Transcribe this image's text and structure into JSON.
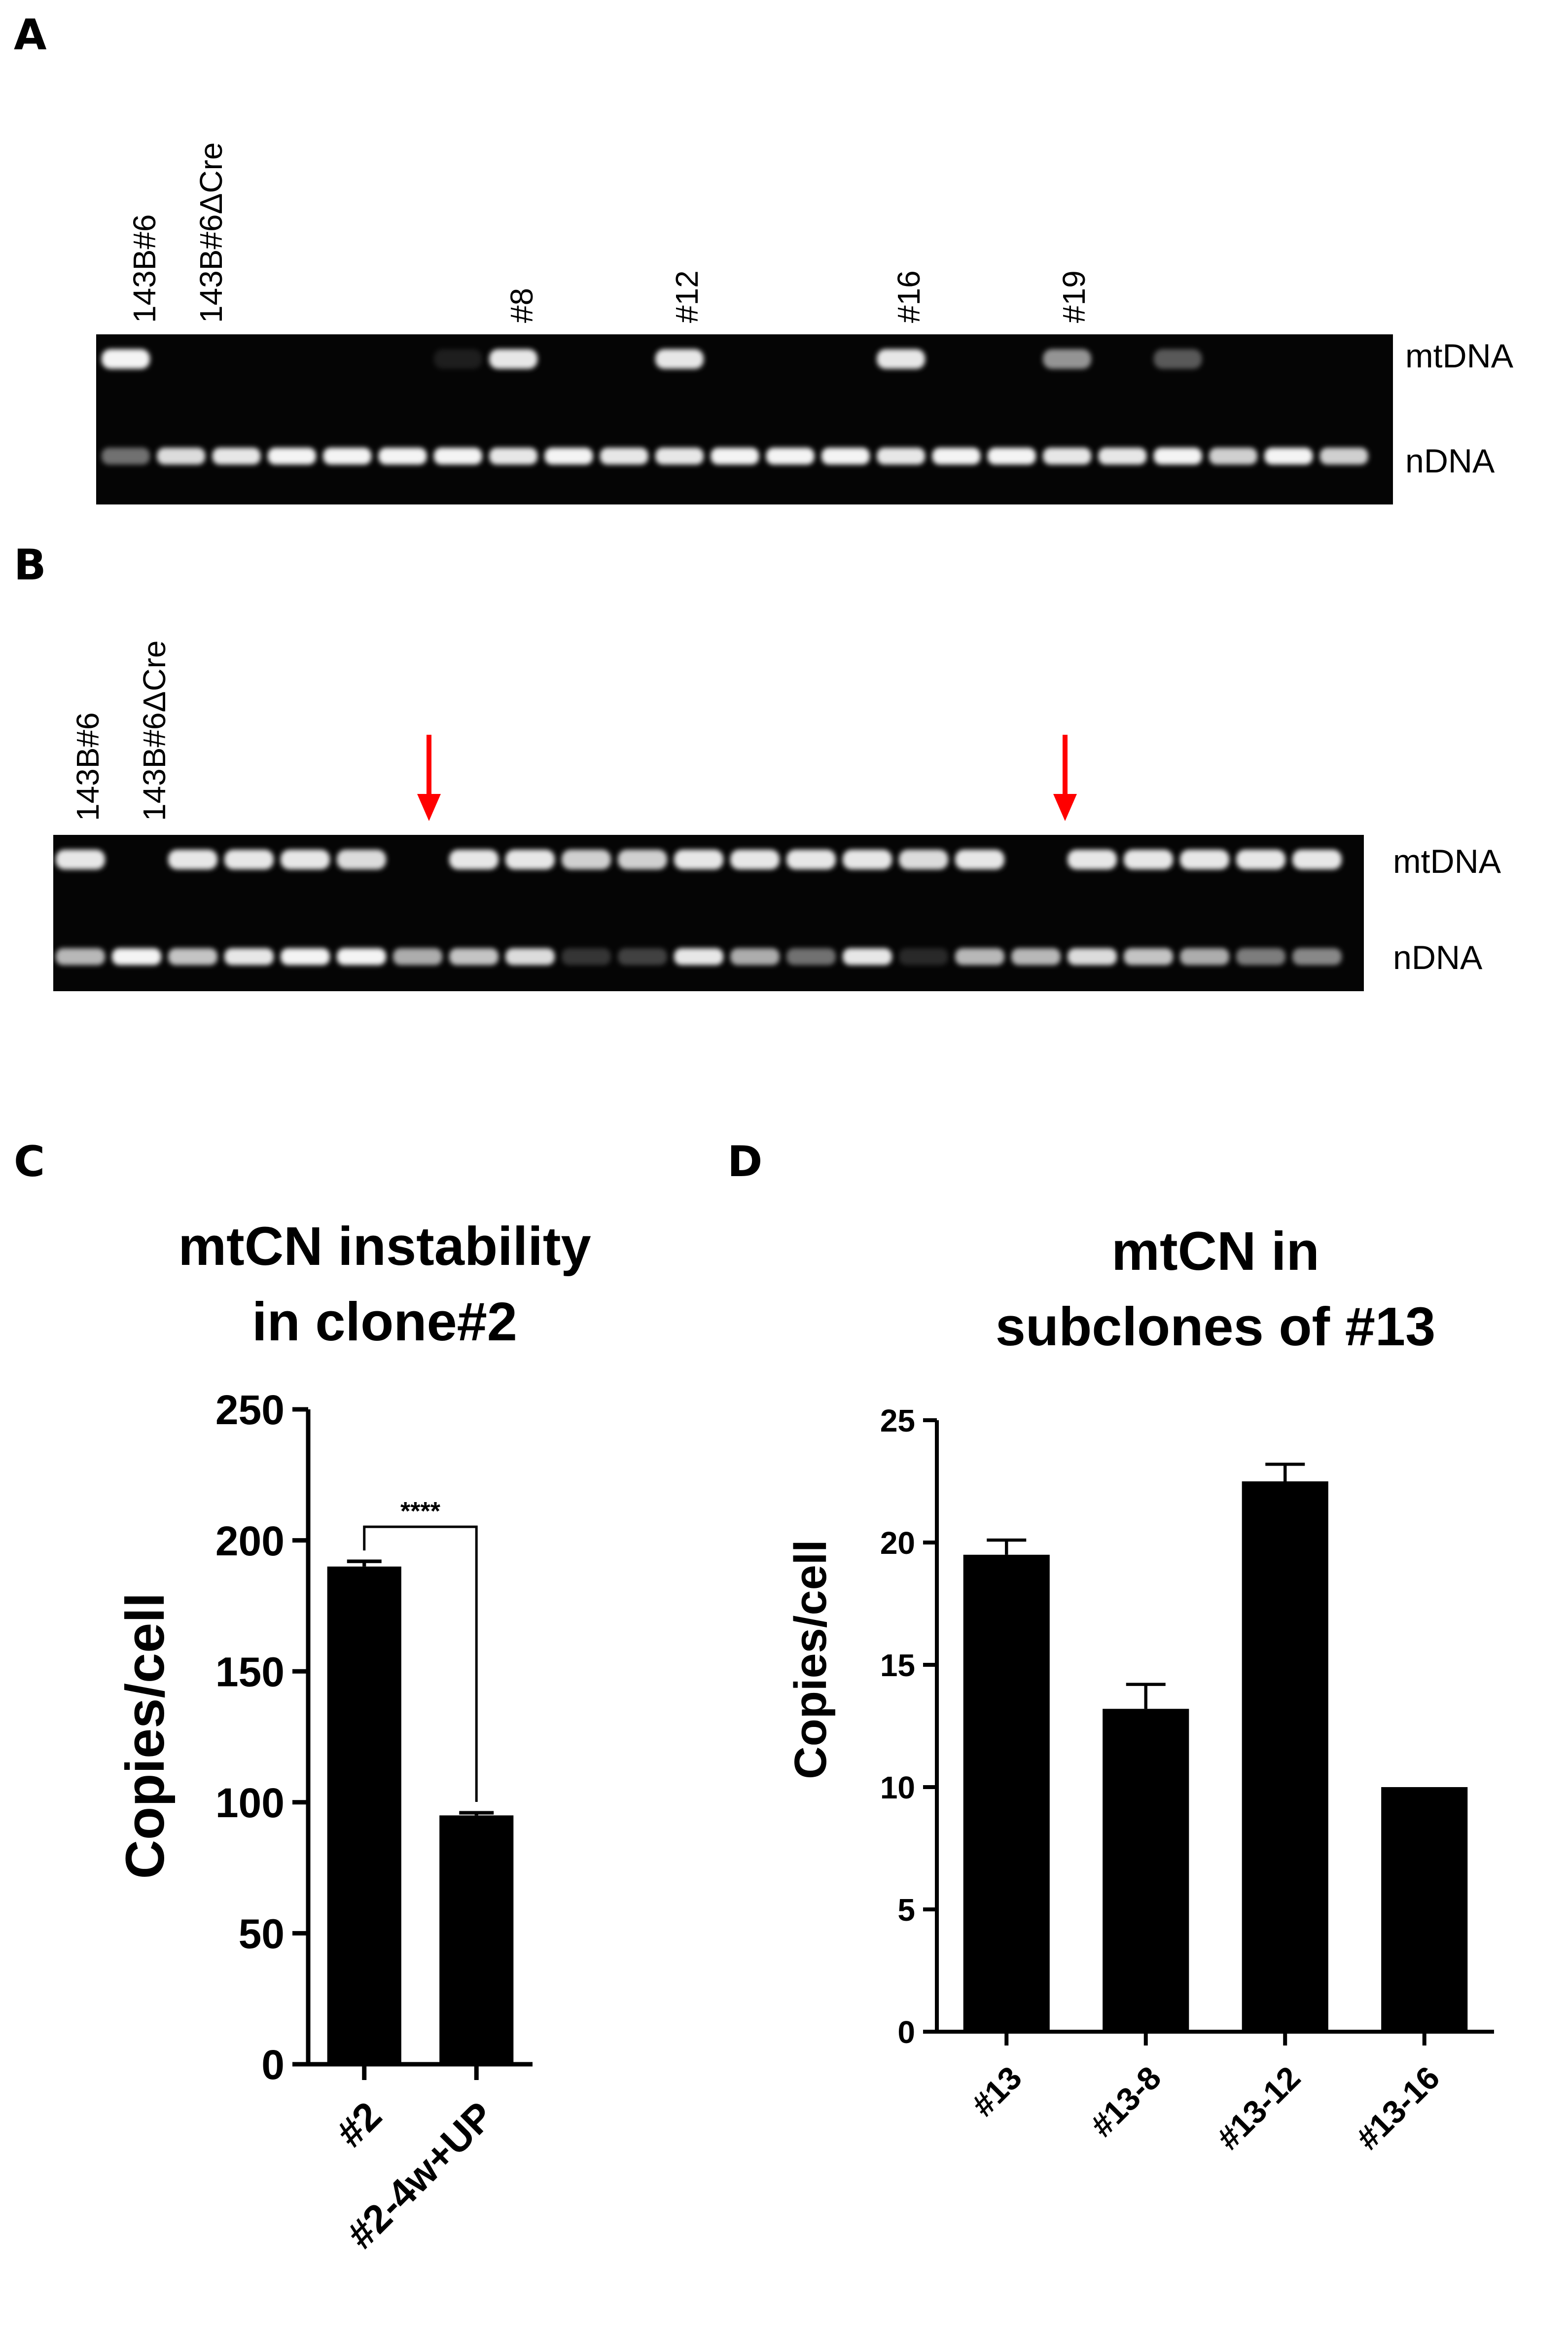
{
  "panels": {
    "A": {
      "letter": "A",
      "lane_labels": [
        "143B#6",
        "143B#6ΔCre",
        "#8",
        "#12",
        "#16",
        "#19"
      ],
      "band_labels": [
        "mtDNA",
        "nDNA"
      ]
    },
    "B": {
      "letter": "B",
      "lane_labels": [
        "143B#6",
        "143B#6ΔCre"
      ],
      "band_labels": [
        "mtDNA",
        "nDNA"
      ]
    },
    "C": {
      "letter": "C"
    },
    "D": {
      "letter": "D"
    }
  },
  "colors": {
    "bar": "#000000",
    "gel_background": "#050505",
    "band": "#f4f4f4",
    "arrow": "#ff0000"
  },
  "chart_data": [
    {
      "type": "bar",
      "title": [
        "mtCN instability",
        "in clone#2"
      ],
      "ylabel": "Copies/cell",
      "xlabel": "",
      "ylim": [
        0,
        250
      ],
      "yticks": [
        0,
        50,
        100,
        150,
        200,
        250
      ],
      "categories": [
        "#2",
        "#2-4w+UP"
      ],
      "values": [
        190,
        95
      ],
      "error": [
        2,
        1
      ],
      "significance": {
        "between": [
          0,
          1
        ],
        "label": "****"
      }
    },
    {
      "type": "bar",
      "title": [
        "mtCN in",
        "subclones of #13"
      ],
      "ylabel": "Copies/cell",
      "xlabel": "",
      "ylim": [
        0,
        25
      ],
      "yticks": [
        0,
        5,
        10,
        15,
        20,
        25
      ],
      "categories": [
        "#13",
        "#13-8",
        "#13-12",
        "#13-16"
      ],
      "values": [
        19.5,
        13.2,
        22.5,
        10.0
      ],
      "error": [
        0.6,
        1.0,
        0.7,
        0
      ]
    }
  ]
}
